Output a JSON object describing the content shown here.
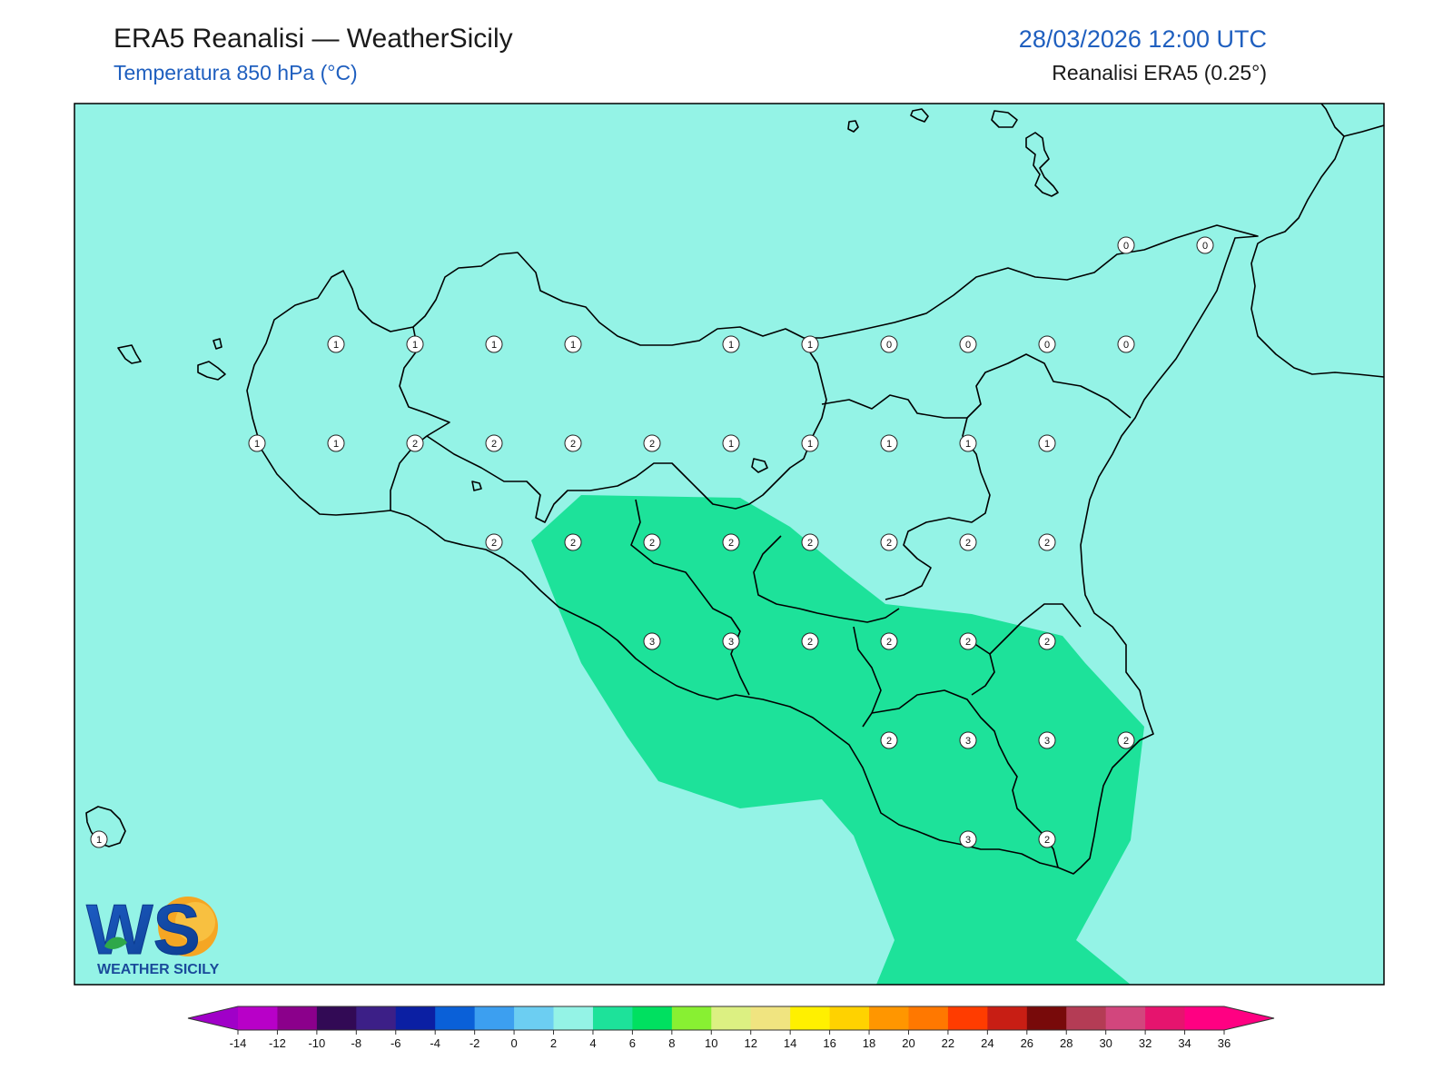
{
  "header": {
    "title": "ERA5 Reanalisi — WeatherSicily",
    "subtitle": "Temperatura 850 hPa (°C)",
    "datetime": "28/03/2026 12:00 UTC",
    "source": "Reanalisi ERA5 (0.25°)"
  },
  "logo": {
    "letters": "WS",
    "name": "WEATHER SICILY"
  },
  "colors": {
    "background_field": "#94f3e6",
    "warm_field": "#1de29a",
    "coastline": "#000000"
  },
  "colorbar": {
    "ticks": [
      "-14",
      "-12",
      "-10",
      "-8",
      "-6",
      "-4",
      "-2",
      "0",
      "2",
      "4",
      "6",
      "8",
      "10",
      "12",
      "14",
      "16",
      "18",
      "20",
      "22",
      "24",
      "26",
      "28",
      "30",
      "32",
      "34",
      "36"
    ],
    "colors": [
      "#b800c8",
      "#8b008b",
      "#320a55",
      "#3c1f87",
      "#0b1fa3",
      "#0a60d8",
      "#3c9ff0",
      "#6ccef2",
      "#94f3e6",
      "#1de29a",
      "#00e060",
      "#88f032",
      "#dcf082",
      "#f0e480",
      "#fff000",
      "#ffd200",
      "#ff9600",
      "#ff7800",
      "#ff3c00",
      "#c81e14",
      "#780a0a",
      "#b43c55",
      "#d2467d",
      "#e6146e",
      "#ff0082"
    ],
    "under_color": "#a000c8",
    "over_color": "#ff0082"
  },
  "stations": [
    {
      "lon": 12.5,
      "lat": 38.25,
      "value": "1"
    },
    {
      "lon": 13.0,
      "lat": 38.25,
      "value": "1"
    },
    {
      "lon": 13.5,
      "lat": 38.25,
      "value": "1"
    },
    {
      "lon": 14.0,
      "lat": 38.25,
      "value": "1"
    },
    {
      "lon": 15.0,
      "lat": 38.25,
      "value": "1"
    },
    {
      "lon": 15.5,
      "lat": 38.25,
      "value": "1"
    },
    {
      "lon": 16.0,
      "lat": 38.25,
      "value": "0"
    },
    {
      "lon": 16.5,
      "lat": 38.25,
      "value": "0"
    },
    {
      "lon": 17.0,
      "lat": 38.25,
      "value": "0"
    },
    {
      "lon": 17.5,
      "lat": 38.25,
      "value": "0"
    },
    {
      "lon": 17.5,
      "lat": 38.75,
      "value": "0"
    },
    {
      "lon": 18.0,
      "lat": 38.75,
      "value": "0"
    },
    {
      "lon": 12.0,
      "lat": 37.75,
      "value": "1"
    },
    {
      "lon": 12.5,
      "lat": 37.75,
      "value": "1"
    },
    {
      "lon": 13.0,
      "lat": 37.75,
      "value": "2"
    },
    {
      "lon": 13.5,
      "lat": 37.75,
      "value": "2"
    },
    {
      "lon": 14.0,
      "lat": 37.75,
      "value": "2"
    },
    {
      "lon": 14.5,
      "lat": 37.75,
      "value": "2"
    },
    {
      "lon": 15.0,
      "lat": 37.75,
      "value": "1"
    },
    {
      "lon": 15.5,
      "lat": 37.75,
      "value": "1"
    },
    {
      "lon": 16.0,
      "lat": 37.75,
      "value": "1"
    },
    {
      "lon": 16.5,
      "lat": 37.75,
      "value": "1"
    },
    {
      "lon": 17.0,
      "lat": 37.75,
      "value": "1"
    },
    {
      "lon": 13.5,
      "lat": 37.25,
      "value": "2"
    },
    {
      "lon": 14.0,
      "lat": 37.25,
      "value": "2"
    },
    {
      "lon": 14.5,
      "lat": 37.25,
      "value": "2"
    },
    {
      "lon": 15.0,
      "lat": 37.25,
      "value": "2"
    },
    {
      "lon": 15.5,
      "lat": 37.25,
      "value": "2"
    },
    {
      "lon": 16.0,
      "lat": 37.25,
      "value": "2"
    },
    {
      "lon": 16.5,
      "lat": 37.25,
      "value": "2"
    },
    {
      "lon": 17.0,
      "lat": 37.25,
      "value": "2"
    },
    {
      "lon": 14.5,
      "lat": 36.75,
      "value": "3"
    },
    {
      "lon": 15.0,
      "lat": 36.75,
      "value": "3"
    },
    {
      "lon": 15.5,
      "lat": 36.75,
      "value": "2"
    },
    {
      "lon": 16.0,
      "lat": 36.75,
      "value": "2"
    },
    {
      "lon": 16.5,
      "lat": 36.75,
      "value": "2"
    },
    {
      "lon": 17.0,
      "lat": 36.75,
      "value": "2"
    },
    {
      "lon": 16.0,
      "lat": 36.25,
      "value": "2"
    },
    {
      "lon": 16.5,
      "lat": 36.25,
      "value": "3"
    },
    {
      "lon": 17.0,
      "lat": 36.25,
      "value": "3"
    },
    {
      "lon": 17.5,
      "lat": 36.25,
      "value": "2"
    },
    {
      "lon": 11.0,
      "lat": 35.75,
      "value": "1"
    },
    {
      "lon": 16.5,
      "lat": 35.75,
      "value": "3"
    },
    {
      "lon": 17.0,
      "lat": 35.75,
      "value": "2"
    }
  ]
}
